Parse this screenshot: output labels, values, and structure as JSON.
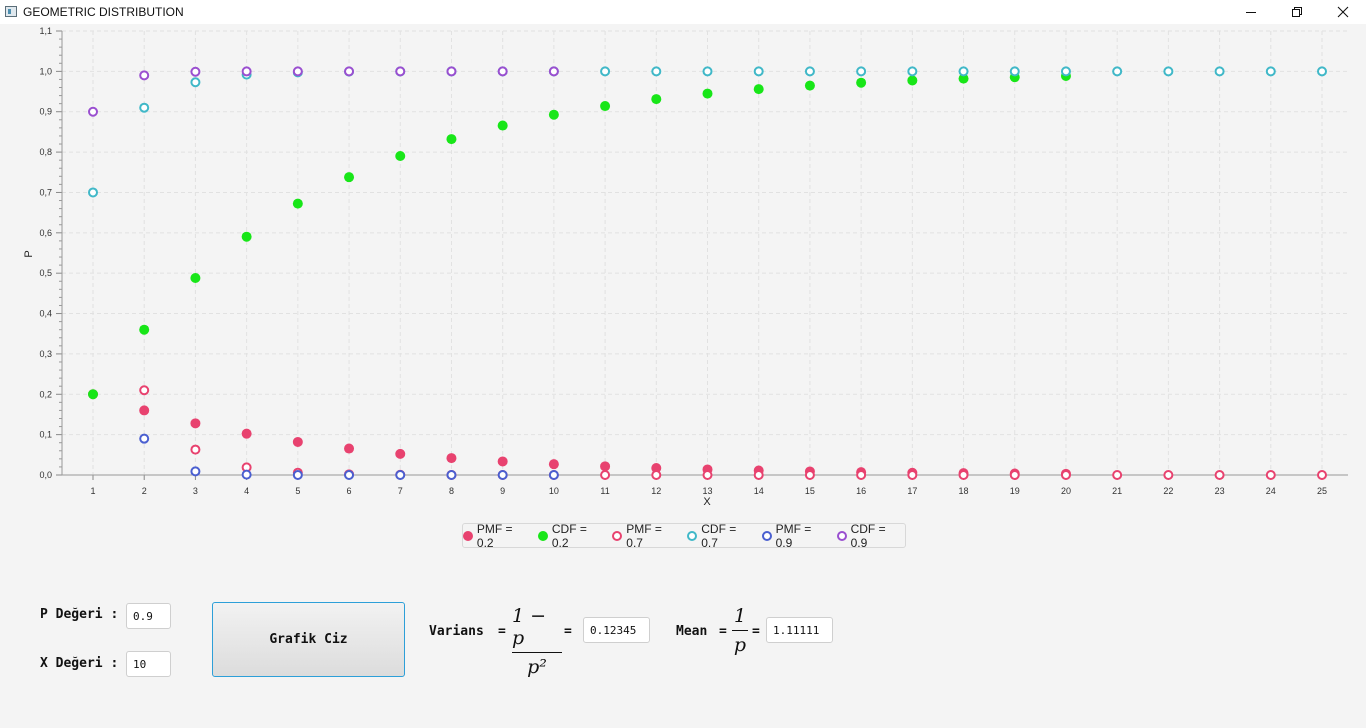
{
  "window": {
    "title": "GEOMETRIC DISTRIBUTION",
    "minimize_icon": "minimize-icon",
    "maximize_icon": "restore-icon",
    "close_icon": "close-icon"
  },
  "chart_data": {
    "type": "scatter",
    "xlabel": "X",
    "ylabel": "P",
    "xlim": [
      0,
      25
    ],
    "ylim": [
      0.0,
      1.1
    ],
    "x_ticks": [
      1,
      2,
      3,
      4,
      5,
      6,
      7,
      8,
      9,
      10,
      11,
      12,
      13,
      14,
      15,
      16,
      17,
      18,
      19,
      20,
      21,
      22,
      23,
      24,
      25
    ],
    "y_ticks": [
      "0,0",
      "0,1",
      "0,2",
      "0,3",
      "0,4",
      "0,5",
      "0,6",
      "0,7",
      "0,8",
      "0,9",
      "1,0",
      "1,1"
    ],
    "grid": true,
    "legend_position": "bottom-center",
    "series": [
      {
        "name": "PMF = 0.2",
        "color": "#e8426f",
        "filled": true,
        "x": [
          1,
          2,
          3,
          4,
          5,
          6,
          7,
          8,
          9,
          10,
          11,
          12,
          13,
          14,
          15,
          16,
          17,
          18,
          19,
          20
        ],
        "y": [
          0.2,
          0.16,
          0.128,
          0.1024,
          0.0819,
          0.0655,
          0.0524,
          0.0419,
          0.0336,
          0.0268,
          0.0215,
          0.0172,
          0.0137,
          0.011,
          0.0088,
          0.007,
          0.0056,
          0.0045,
          0.0036,
          0.0029
        ]
      },
      {
        "name": "CDF = 0.2",
        "color": "#18e618",
        "filled": true,
        "x": [
          1,
          2,
          3,
          4,
          5,
          6,
          7,
          8,
          9,
          10,
          11,
          12,
          13,
          14,
          15,
          16,
          17,
          18,
          19,
          20
        ],
        "y": [
          0.2,
          0.36,
          0.488,
          0.5904,
          0.6723,
          0.7379,
          0.7903,
          0.8322,
          0.8658,
          0.8926,
          0.9141,
          0.9313,
          0.945,
          0.956,
          0.9648,
          0.9719,
          0.9775,
          0.982,
          0.9856,
          0.9885
        ]
      },
      {
        "name": "PMF = 0.7",
        "color": "#e8426f",
        "filled": false,
        "x": [
          2,
          3,
          4,
          5,
          6,
          7,
          8,
          9,
          10,
          11,
          12,
          13,
          14,
          15,
          16,
          17,
          18,
          19,
          20,
          21,
          22,
          23,
          24,
          25
        ],
        "y": [
          0.21,
          0.063,
          0.0189,
          0.0057,
          0.0017,
          0.0005,
          0.0001,
          0,
          0,
          0,
          0,
          0,
          0,
          0,
          0,
          0,
          0,
          0,
          0,
          0,
          0,
          0,
          0,
          0
        ]
      },
      {
        "name": "CDF = 0.7",
        "color": "#40b8c8",
        "filled": false,
        "x": [
          1,
          2,
          3,
          4,
          5,
          6,
          7,
          8,
          9,
          10,
          11,
          12,
          13,
          14,
          15,
          16,
          17,
          18,
          19,
          20,
          21,
          22,
          23,
          24,
          25
        ],
        "y": [
          0.7,
          0.91,
          0.973,
          0.9919,
          0.9976,
          0.9993,
          0.9998,
          0.9999,
          1,
          1,
          1,
          1,
          1,
          1,
          1,
          1,
          1,
          1,
          1,
          1,
          1,
          1,
          1,
          1,
          1
        ]
      },
      {
        "name": "PMF = 0.9",
        "color": "#4a5fd0",
        "filled": false,
        "x": [
          2,
          3,
          4,
          5,
          6,
          7,
          8,
          9,
          10
        ],
        "y": [
          0.09,
          0.009,
          0.0009,
          0.0001,
          0,
          0,
          0,
          0,
          0
        ]
      },
      {
        "name": "CDF = 0.9",
        "color": "#9a4fd0",
        "filled": false,
        "x": [
          1,
          2,
          3,
          4,
          5,
          6,
          7,
          8,
          9,
          10
        ],
        "y": [
          0.9,
          0.99,
          0.999,
          0.9999,
          1,
          1,
          1,
          1,
          1,
          1
        ]
      }
    ]
  },
  "form": {
    "p_label": "P Değeri :",
    "p_value": "0.9",
    "x_label": "X Değeri :",
    "x_value": "10",
    "button_label": "Grafik Ciz"
  },
  "variance": {
    "label": "Varians",
    "eq": "=",
    "numerator": "1 − p",
    "denominator": "p²",
    "eq2": "=",
    "value": "0.12345"
  },
  "mean": {
    "label": "Mean",
    "eq": "=",
    "numerator": "1",
    "denominator": "p",
    "eq2": "=",
    "value": "1.11111"
  }
}
